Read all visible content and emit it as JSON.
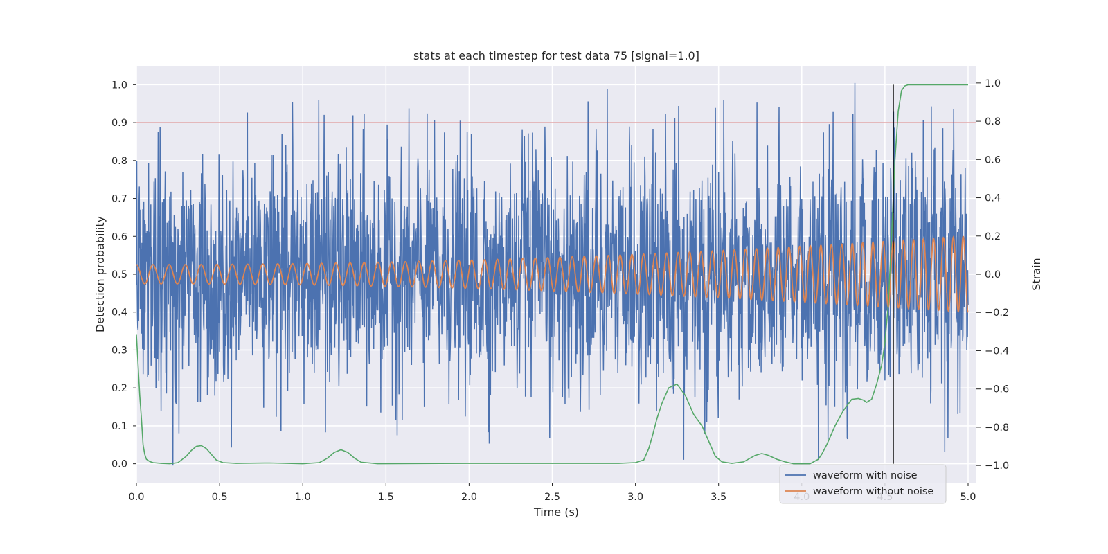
{
  "chart_data": {
    "type": "line",
    "title": "stats at each timestep for test data 75 [signal=1.0]",
    "xlabel": "Time (s)",
    "ylabel": "Detection probability",
    "y2label": "Strain",
    "xlim": [
      0.0,
      5.05
    ],
    "ylim": [
      -0.05,
      1.05
    ],
    "y2lim": [
      -1.09,
      1.09
    ],
    "grid": true,
    "legend_position": "lower-right",
    "x_ticks": [
      "0.0",
      "0.5",
      "1.0",
      "1.5",
      "2.0",
      "2.5",
      "3.0",
      "3.5",
      "4.0",
      "4.5",
      "5.0"
    ],
    "x_tick_values": [
      0,
      0.5,
      1.0,
      1.5,
      2.0,
      2.5,
      3.0,
      3.5,
      4.0,
      4.5,
      5.0
    ],
    "y_ticks": [
      "0.0",
      "0.1",
      "0.2",
      "0.3",
      "0.4",
      "0.5",
      "0.6",
      "0.7",
      "0.8",
      "0.9",
      "1.0"
    ],
    "y_tick_values": [
      0.0,
      0.1,
      0.2,
      0.3,
      0.4,
      0.5,
      0.6,
      0.7,
      0.8,
      0.9,
      1.0
    ],
    "y2_ticks": [
      "−1.0",
      "−0.8",
      "−0.6",
      "−0.4",
      "−0.2",
      "0.0",
      "0.2",
      "0.4",
      "0.6",
      "0.8",
      "1.0"
    ],
    "y2_tick_values": [
      -1.0,
      -0.8,
      -0.6,
      -0.4,
      -0.2,
      0.0,
      0.2,
      0.4,
      0.6,
      0.8,
      1.0
    ],
    "threshold": 0.9,
    "detection_time": 4.55,
    "series": [
      {
        "name": "waveform with noise",
        "color": "#4c72b0",
        "axis": "strain",
        "description": "noisy strain time series sampled densely from 0 to 5 s",
        "noise_sigma": 0.3,
        "spikes": [
          [
            0.22,
            -1.0
          ],
          [
            0.87,
            -0.82
          ],
          [
            2.83,
            0.97
          ],
          [
            3.29,
            -0.97
          ],
          [
            3.48,
            0.87
          ],
          [
            4.1,
            -0.97
          ],
          [
            4.32,
            1.0
          ],
          [
            4.86,
            -0.93
          ],
          [
            1.3,
            0.72
          ],
          [
            2.67,
            -0.72
          ]
        ]
      },
      {
        "name": "waveform without noise",
        "color": "#dd8452",
        "axis": "strain",
        "start_amplitude": 0.05,
        "end_amplitude": 0.2,
        "start_cycles_per_s": 10,
        "end_cycles_per_s": 17
      },
      {
        "name": "detection probability",
        "color": "#55a868",
        "axis": "probability",
        "x": [
          0.0,
          0.01,
          0.02,
          0.03,
          0.04,
          0.05,
          0.06,
          0.08,
          0.1,
          0.15,
          0.2,
          0.25,
          0.3,
          0.33,
          0.36,
          0.39,
          0.42,
          0.45,
          0.48,
          0.52,
          0.6,
          0.8,
          1.0,
          1.1,
          1.15,
          1.19,
          1.23,
          1.27,
          1.31,
          1.35,
          1.45,
          2.0,
          2.5,
          2.9,
          3.0,
          3.05,
          3.08,
          3.1,
          3.13,
          3.16,
          3.2,
          3.25,
          3.3,
          3.35,
          3.4,
          3.45,
          3.48,
          3.52,
          3.58,
          3.65,
          3.72,
          3.76,
          3.8,
          3.85,
          3.9,
          3.95,
          4.0,
          4.05,
          4.1,
          4.12,
          4.15,
          4.2,
          4.25,
          4.3,
          4.34,
          4.37,
          4.39,
          4.42,
          4.45,
          4.48,
          4.5,
          4.52,
          4.54,
          4.56,
          4.58,
          4.6,
          4.62,
          4.64,
          4.67,
          4.7,
          4.8,
          5.0
        ],
        "y": [
          0.34,
          0.26,
          0.18,
          0.12,
          0.05,
          0.025,
          0.012,
          0.006,
          0.003,
          0.001,
          0.0,
          0.003,
          0.02,
          0.035,
          0.046,
          0.048,
          0.04,
          0.025,
          0.01,
          0.003,
          0.001,
          0.002,
          0.0,
          0.003,
          0.015,
          0.03,
          0.037,
          0.03,
          0.015,
          0.004,
          0.0,
          0.001,
          0.001,
          0.001,
          0.003,
          0.01,
          0.04,
          0.07,
          0.12,
          0.16,
          0.2,
          0.21,
          0.18,
          0.13,
          0.1,
          0.05,
          0.02,
          0.005,
          0.001,
          0.005,
          0.022,
          0.027,
          0.022,
          0.012,
          0.005,
          0.0,
          0.0,
          0.0,
          0.012,
          0.025,
          0.05,
          0.1,
          0.14,
          0.17,
          0.172,
          0.168,
          0.162,
          0.17,
          0.21,
          0.26,
          0.32,
          0.42,
          0.6,
          0.8,
          0.93,
          0.985,
          0.997,
          1.0,
          1.0,
          1.0,
          1.0,
          1.0
        ]
      }
    ],
    "legend": [
      "waveform with noise",
      "waveform without noise"
    ],
    "colors": {
      "plot_background": "#eaeaf2",
      "grid": "#ffffff",
      "threshold_line": "#c44e52",
      "detection_line": "#000000"
    }
  }
}
